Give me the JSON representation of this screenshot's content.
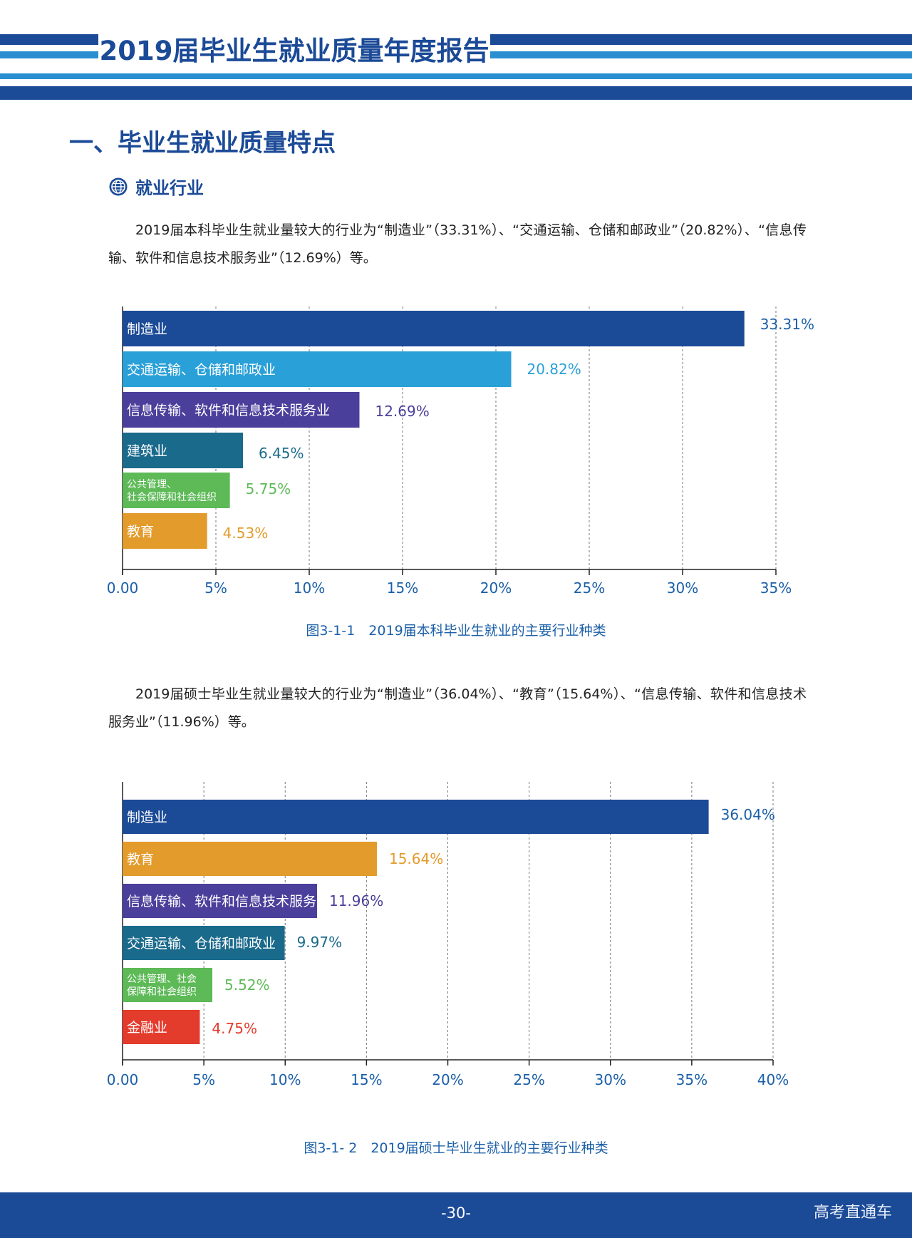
{
  "header": {
    "title": "2019届毕业生就业质量年度报告"
  },
  "section": {
    "title": "一、毕业生就业质量特点"
  },
  "subsection": {
    "title": "就业行业"
  },
  "paragraph1": "2019届本科毕业生就业量较大的行业为“制造业”（33.31%）、“交通运输、仓储和邮政业”（20.82%）、“信息传输、软件和信息技术服务业”（12.69%）等。",
  "paragraph2": "2019届硕士毕业生就业量较大的行业为“制造业”（36.04%）、“教育”（15.64%）、“信息传输、软件和信息技术服务业”（11.96%）等。",
  "colors": {
    "navy": "#1b4a97",
    "light_blue": "#2aa0d8",
    "purple": "#4a3f9b",
    "teal": "#1a6a8c",
    "green": "#5dba57",
    "orange": "#e39b2c",
    "red": "#e33b2c",
    "axis_text": "#1b5fa8"
  },
  "chart_data": [
    {
      "type": "bar",
      "orientation": "horizontal",
      "title": "图3-1-1　2019届本科毕业生就业的主要行业种类",
      "categories": [
        "制造业",
        "交通运输、仓储和邮政业",
        "信息传输、软件和信息技术服务业",
        "建筑业",
        "公共管理、社会保障和社会组织",
        "教育"
      ],
      "label_lines": [
        [
          "制造业"
        ],
        [
          "交通运输、仓储和邮政业"
        ],
        [
          "信息传输、软件和信息技术服务业"
        ],
        [
          "建筑业"
        ],
        [
          "公共管理、",
          "社会保障和社会组织"
        ],
        [
          "教育"
        ]
      ],
      "values": [
        33.31,
        20.82,
        12.69,
        6.45,
        5.75,
        4.53
      ],
      "value_labels": [
        "33.31%",
        "20.82%",
        "12.69%",
        "6.45%",
        "5.75%",
        "4.53%"
      ],
      "bar_colors": [
        "#1b4a97",
        "#2aa0d8",
        "#4a3f9b",
        "#1a6a8c",
        "#5dba57",
        "#e39b2c"
      ],
      "label_colors": [
        "#1b5fa8",
        "#2aa0d8",
        "#4a3f9b",
        "#1a6a8c",
        "#5dba57",
        "#e39b2c"
      ],
      "xlim": [
        0,
        35
      ],
      "xticks": [
        0,
        5,
        10,
        15,
        20,
        25,
        30,
        35
      ],
      "xtick_labels": [
        "0.00",
        "5%",
        "10%",
        "15%",
        "20%",
        "25%",
        "30%",
        "35%"
      ],
      "grid": true
    },
    {
      "type": "bar",
      "orientation": "horizontal",
      "title": "图3-1- 2　2019届硕士毕业生就业的主要行业种类",
      "categories": [
        "制造业",
        "教育",
        "信息传输、软件和信息技术服务业",
        "交通运输、仓储和邮政业",
        "公共管理、社会保障和社会组织",
        "金融业"
      ],
      "label_lines": [
        [
          "制造业"
        ],
        [
          "教育"
        ],
        [
          "信息传输、软件和信息技术服务业"
        ],
        [
          "交通运输、仓储和邮政业"
        ],
        [
          "公共管理、社会",
          "保障和社会组织"
        ],
        [
          "金融业"
        ]
      ],
      "values": [
        36.04,
        15.64,
        11.96,
        9.97,
        5.52,
        4.75
      ],
      "value_labels": [
        "36.04%",
        "15.64%",
        "11.96%",
        "9.97%",
        "5.52%",
        "4.75%"
      ],
      "bar_colors": [
        "#1b4a97",
        "#e39b2c",
        "#4a3f9b",
        "#1a6a8c",
        "#5dba57",
        "#e33b2c"
      ],
      "label_colors": [
        "#1b5fa8",
        "#e39b2c",
        "#4a3f9b",
        "#1a6a8c",
        "#5dba57",
        "#e33b2c"
      ],
      "xlim": [
        0,
        40
      ],
      "xticks": [
        0,
        5,
        10,
        15,
        20,
        25,
        30,
        35,
        40
      ],
      "xtick_labels": [
        "0.00",
        "5%",
        "10%",
        "15%",
        "20%",
        "25%",
        "30%",
        "35%",
        "40%"
      ],
      "grid": true
    }
  ],
  "footer": {
    "page": "-30-",
    "brand": "高考直通车"
  }
}
